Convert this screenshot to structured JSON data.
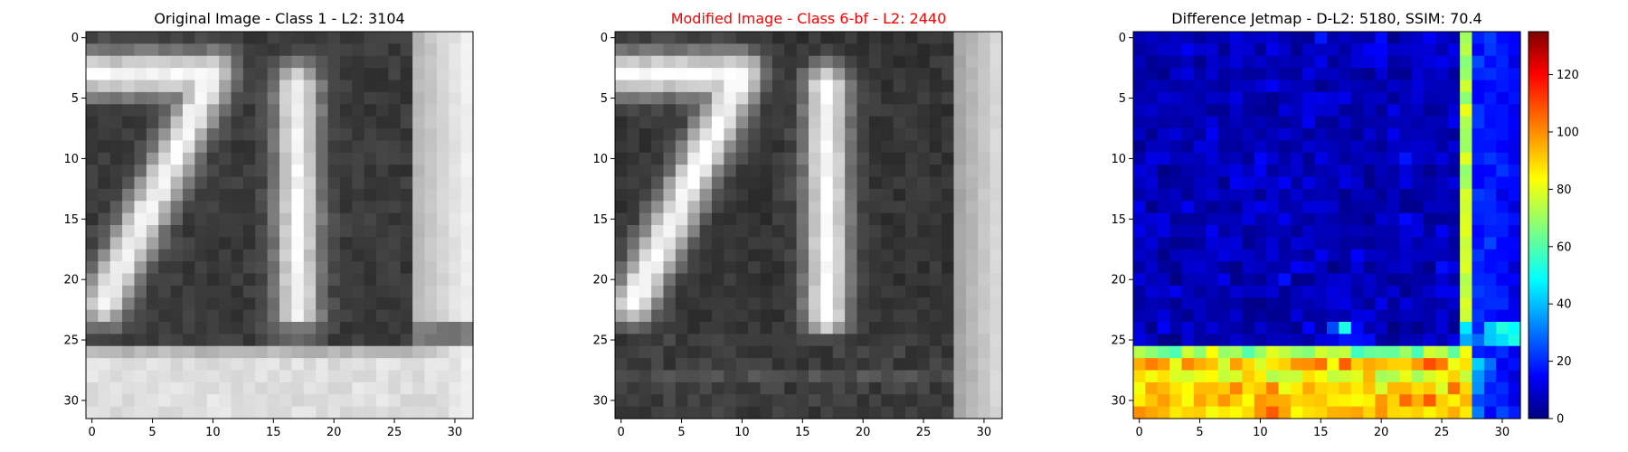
{
  "chart_data": [
    {
      "type": "heatmap",
      "title": "Original Image - Class 1 - L2: 3104",
      "title_color": "#000000",
      "colormap": "gray",
      "xlabel": "",
      "ylabel": "",
      "xlim": [
        -0.5,
        31.5
      ],
      "ylim": [
        31.5,
        -0.5
      ],
      "xticks": [
        "0",
        "5",
        "10",
        "15",
        "20",
        "25",
        "30"
      ],
      "yticks": [
        "0",
        "5",
        "10",
        "15",
        "20",
        "25",
        "30"
      ]
    },
    {
      "type": "heatmap",
      "title": "Modified Image - Class 6-bf - L2: 2440",
      "title_color": "#ff0000",
      "colormap": "gray",
      "xlabel": "",
      "ylabel": "",
      "xlim": [
        -0.5,
        31.5
      ],
      "ylim": [
        31.5,
        -0.5
      ],
      "xticks": [
        "0",
        "5",
        "10",
        "15",
        "20",
        "25",
        "30"
      ],
      "yticks": [
        "0",
        "5",
        "10",
        "15",
        "20",
        "25",
        "30"
      ]
    },
    {
      "type": "heatmap",
      "title": "Difference Jetmap - D-L2: 5180, SSIM: 70.4",
      "title_color": "#000000",
      "colormap": "jet",
      "xlabel": "",
      "ylabel": "",
      "xlim": [
        -0.5,
        31.5
      ],
      "ylim": [
        31.5,
        -0.5
      ],
      "xticks": [
        "0",
        "5",
        "10",
        "15",
        "20",
        "25",
        "30"
      ],
      "yticks": [
        "0",
        "5",
        "10",
        "15",
        "20",
        "25",
        "30"
      ],
      "colorbar": {
        "min": 0,
        "max": 135,
        "ticks": [
          "0",
          "20",
          "40",
          "60",
          "80",
          "100",
          "120"
        ]
      }
    }
  ]
}
